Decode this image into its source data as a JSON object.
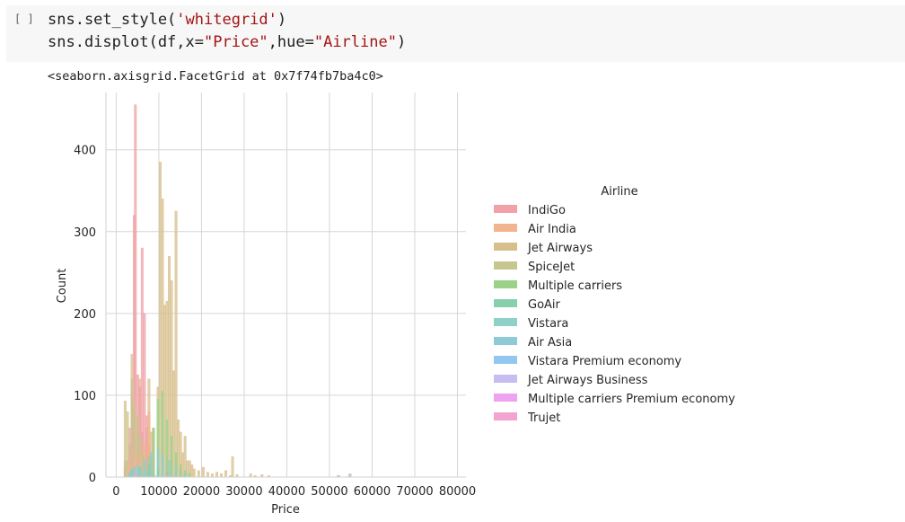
{
  "cell": {
    "prompt": "[ ]",
    "code_line1": {
      "a": "sns.set_style(",
      "b": "'whitegrid'",
      "c": ")"
    },
    "code_line2": {
      "a": "sns.displot(df,x=",
      "b": "\"Price\"",
      "c": ",hue=",
      "d": "\"Airline\"",
      "e": ")"
    },
    "output_text": "<seaborn.axisgrid.FacetGrid at 0x7f74fb7ba4c0>"
  },
  "chart_data": {
    "type": "bar",
    "histogram": true,
    "xlabel": "Price",
    "ylabel": "Count",
    "xlim": [
      -2400,
      82000
    ],
    "ylim": [
      0,
      470
    ],
    "xticks": [
      0,
      10000,
      20000,
      30000,
      40000,
      50000,
      60000,
      70000,
      80000
    ],
    "yticks": [
      0,
      100,
      200,
      300,
      400
    ],
    "grid": true,
    "legend_title": "Airline",
    "legend_placement": "right",
    "bin_width": 530,
    "series": [
      {
        "name": "IndiGo",
        "color": "#f0a2a7",
        "bars": [
          [
            2100,
            12
          ],
          [
            2650,
            20
          ],
          [
            3180,
            60
          ],
          [
            3710,
            100
          ],
          [
            4240,
            320
          ],
          [
            4500,
            455
          ],
          [
            5030,
            125
          ],
          [
            5560,
            110
          ],
          [
            6090,
            280
          ],
          [
            6620,
            200
          ],
          [
            7150,
            75
          ],
          [
            7680,
            40
          ],
          [
            8210,
            25
          ],
          [
            8740,
            10
          ]
        ]
      },
      {
        "name": "Air India",
        "color": "#f2b48e",
        "bars": [
          [
            3180,
            15
          ],
          [
            4240,
            30
          ],
          [
            5560,
            25
          ],
          [
            6620,
            40
          ],
          [
            7680,
            80
          ],
          [
            8740,
            60
          ],
          [
            9800,
            40
          ],
          [
            10860,
            30
          ],
          [
            11920,
            25
          ],
          [
            12980,
            20
          ],
          [
            14040,
            15
          ],
          [
            15100,
            10
          ],
          [
            16160,
            5
          ]
        ]
      },
      {
        "name": "Jet Airways",
        "color": "#d7bf8c",
        "bars": [
          [
            2100,
            93
          ],
          [
            3180,
            40
          ],
          [
            3710,
            150
          ],
          [
            4240,
            75
          ],
          [
            5030,
            55
          ],
          [
            5560,
            120
          ],
          [
            6090,
            55
          ],
          [
            7150,
            60
          ],
          [
            7680,
            120
          ],
          [
            8210,
            55
          ],
          [
            8740,
            60
          ],
          [
            9800,
            110
          ],
          [
            10330,
            385
          ],
          [
            10860,
            340
          ],
          [
            11390,
            210
          ],
          [
            11920,
            215
          ],
          [
            12450,
            270
          ],
          [
            12980,
            240
          ],
          [
            13510,
            130
          ],
          [
            14040,
            325
          ],
          [
            14570,
            70
          ],
          [
            15100,
            55
          ],
          [
            15630,
            30
          ],
          [
            16160,
            50
          ],
          [
            16690,
            20
          ],
          [
            17220,
            20
          ],
          [
            17750,
            15
          ],
          [
            18280,
            10
          ],
          [
            19340,
            8
          ],
          [
            20400,
            12
          ],
          [
            21460,
            6
          ],
          [
            22520,
            4
          ],
          [
            23580,
            6
          ],
          [
            24640,
            4
          ],
          [
            25700,
            8
          ],
          [
            26760,
            2
          ],
          [
            27290,
            25
          ],
          [
            28350,
            3
          ],
          [
            31530,
            4
          ],
          [
            32590,
            2
          ],
          [
            34180,
            3
          ],
          [
            35770,
            2
          ],
          [
            52200,
            2
          ],
          [
            54850,
            4
          ]
        ]
      },
      {
        "name": "SpiceJet",
        "color": "#c7c68e",
        "bars": [
          [
            2100,
            20
          ],
          [
            2650,
            80
          ],
          [
            3710,
            120
          ],
          [
            4240,
            90
          ],
          [
            5030,
            75
          ],
          [
            5560,
            50
          ],
          [
            6090,
            30
          ],
          [
            6620,
            20
          ],
          [
            7150,
            10
          ]
        ]
      },
      {
        "name": "Multiple carriers",
        "color": "#9cd18a",
        "bars": [
          [
            5560,
            10
          ],
          [
            6620,
            18
          ],
          [
            7680,
            25
          ],
          [
            8740,
            60
          ],
          [
            9800,
            95
          ],
          [
            10860,
            105
          ],
          [
            11920,
            70
          ],
          [
            12980,
            50
          ],
          [
            14040,
            30
          ],
          [
            15100,
            15
          ],
          [
            16160,
            8
          ],
          [
            17220,
            5
          ]
        ]
      },
      {
        "name": "GoAir",
        "color": "#88cfab",
        "bars": [
          [
            3710,
            8
          ],
          [
            5560,
            12
          ],
          [
            7680,
            15
          ],
          [
            9800,
            10
          ],
          [
            11920,
            6
          ]
        ]
      },
      {
        "name": "Vistara",
        "color": "#8fd0c8",
        "bars": [
          [
            3710,
            10
          ],
          [
            5030,
            15
          ],
          [
            6620,
            22
          ],
          [
            8210,
            30
          ],
          [
            9800,
            35
          ],
          [
            10860,
            28
          ],
          [
            12450,
            20
          ],
          [
            14040,
            12
          ],
          [
            16160,
            5
          ]
        ]
      },
      {
        "name": "Air Asia",
        "color": "#8fcbd6",
        "bars": [
          [
            3180,
            6
          ],
          [
            4240,
            12
          ],
          [
            5560,
            10
          ],
          [
            7150,
            6
          ]
        ]
      },
      {
        "name": "Vistara Premium economy",
        "color": "#94c7f0",
        "bars": [
          [
            9000,
            2
          ]
        ]
      },
      {
        "name": "Jet Airways Business",
        "color": "#c7bdf0",
        "bars": [
          [
            52000,
            2
          ],
          [
            54700,
            3
          ]
        ]
      },
      {
        "name": "Multiple carriers Premium economy",
        "color": "#eea3f0",
        "bars": [
          [
            12000,
            2
          ]
        ]
      },
      {
        "name": "Trujet",
        "color": "#f2a3d0",
        "bars": [
          [
            4240,
            2
          ]
        ]
      }
    ]
  }
}
